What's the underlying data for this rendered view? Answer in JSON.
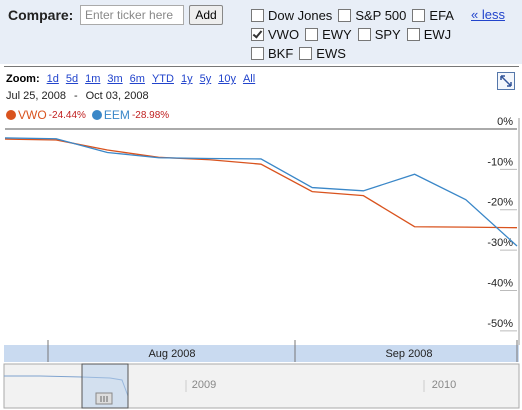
{
  "compare": {
    "label": "Compare:",
    "placeholder": "Enter ticker here",
    "button": "Add",
    "tickers": [
      [
        {
          "name": "Dow Jones",
          "checked": false
        },
        {
          "name": "S&P 500",
          "checked": false
        },
        {
          "name": "EFA",
          "checked": false
        }
      ],
      [
        {
          "name": "VWO",
          "checked": true
        },
        {
          "name": "EWY",
          "checked": false
        },
        {
          "name": "SPY",
          "checked": false
        },
        {
          "name": "EWJ",
          "checked": false
        }
      ],
      [
        {
          "name": "BKF",
          "checked": false
        },
        {
          "name": "EWS",
          "checked": false
        }
      ]
    ],
    "less_link": "« less"
  },
  "zoom": {
    "label": "Zoom:",
    "options": [
      "1d",
      "5d",
      "1m",
      "3m",
      "6m",
      "YTD",
      "1y",
      "5y",
      "10y",
      "All"
    ]
  },
  "date_range": {
    "start": "Jul 25, 2008",
    "separator": "-",
    "end": "Oct 03, 2008"
  },
  "chart_data": {
    "type": "line",
    "categories": [
      null,
      null,
      null,
      null,
      null,
      null,
      null,
      null,
      null,
      null,
      null
    ],
    "series": [
      {
        "name": "VWO",
        "change": "-24.44%",
        "color": "#d9531e",
        "values": [
          -2.5,
          -2.7,
          -5.2,
          -7,
          -7.6,
          -8.7,
          -15.5,
          -16.5,
          -24.2,
          -24.3,
          -24.44
        ]
      },
      {
        "name": "EEM",
        "change": "-28.98%",
        "color": "#3a87c8",
        "values": [
          -2.2,
          -2.4,
          -5.8,
          -7.1,
          -7.3,
          -7.4,
          -14.5,
          -15.3,
          -11.2,
          -17.5,
          -28.98
        ]
      }
    ],
    "ylim": [
      -53.5,
      1.5
    ],
    "yticks": [
      {
        "value": 0,
        "label": "0%"
      },
      {
        "value": -10,
        "label": "-10%"
      },
      {
        "value": -20,
        "label": "-20%"
      },
      {
        "value": -30,
        "label": "-30%"
      },
      {
        "value": -40,
        "label": "-40%"
      },
      {
        "value": -50,
        "label": "-50%"
      }
    ],
    "x_labels": [
      "Aug 2008",
      "Sep 2008"
    ]
  },
  "navigator": {
    "labels": [
      "2009",
      "2010"
    ]
  }
}
